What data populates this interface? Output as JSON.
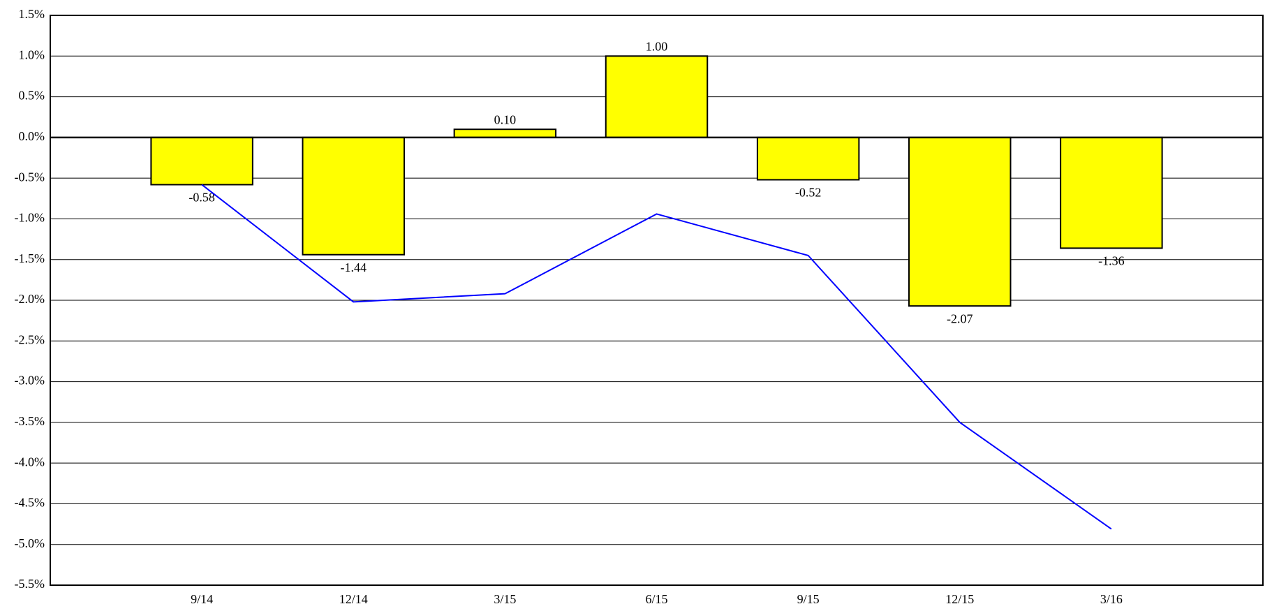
{
  "chart_data": {
    "type": "bar",
    "categories": [
      "9/14",
      "12/14",
      "3/15",
      "6/15",
      "9/15",
      "12/15",
      "3/16"
    ],
    "series": [
      {
        "type": "bar",
        "color": "#ffff00",
        "values": [
          -0.58,
          -1.44,
          0.1,
          1.0,
          -0.52,
          -2.07,
          -1.36
        ],
        "value_labels": [
          "-0.58",
          "-1.44",
          "0.10",
          "1.00",
          "-0.52",
          "-2.07",
          "-1.36"
        ]
      },
      {
        "type": "line",
        "color": "#0000ff",
        "values": [
          -0.58,
          -2.02,
          -1.92,
          -0.94,
          -1.45,
          -3.5,
          -4.81
        ]
      }
    ],
    "ylim": [
      -5.5,
      1.5
    ],
    "yticks": [
      {
        "value": -5.5,
        "label": "-5.5%"
      },
      {
        "value": -5.0,
        "label": "-5.0%"
      },
      {
        "value": -4.5,
        "label": "-4.5%"
      },
      {
        "value": -4.0,
        "label": "-4.0%"
      },
      {
        "value": -3.5,
        "label": "-3.5%"
      },
      {
        "value": -3.0,
        "label": "-3.0%"
      },
      {
        "value": -2.5,
        "label": "-2.5%"
      },
      {
        "value": -2.0,
        "label": "-2.0%"
      },
      {
        "value": -1.5,
        "label": "-1.5%"
      },
      {
        "value": -1.0,
        "label": "-1.0%"
      },
      {
        "value": -0.5,
        "label": "-0.5%"
      },
      {
        "value": 0.0,
        "label": "0.0%"
      },
      {
        "value": 0.5,
        "label": "0.5%"
      },
      {
        "value": 1.0,
        "label": "1.0%"
      },
      {
        "value": 1.5,
        "label": "1.5%"
      }
    ],
    "grid": true
  }
}
